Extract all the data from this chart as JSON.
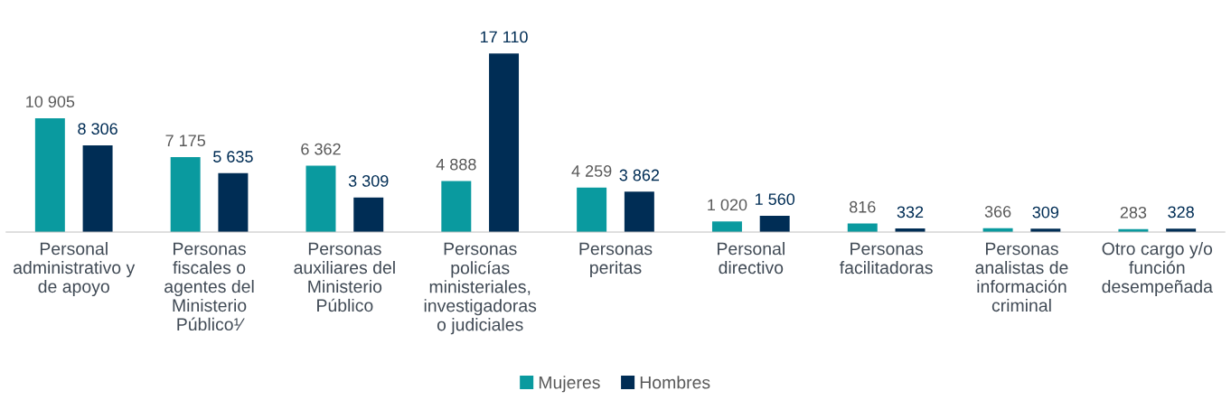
{
  "chart_data": {
    "type": "bar",
    "categories": [
      "Personal\nadministrativo y\nde apoyo",
      "Personas\nfiscales o\nagentes del\nMinisterio\nPúblico¹⁄",
      "Personas\nauxiliares del\nMinisterio\nPúblico",
      "Personas\npolicías\nministeriales,\ninvestigadoras\no judiciales",
      "Personas\nperitas",
      "Personal\ndirectivo",
      "Personas\nfacilitadoras",
      "Personas\nanalistas de\ninformación\ncriminal",
      "Otro cargo y/o\nfunción\ndesempeñada"
    ],
    "series": [
      {
        "name": "Mujeres",
        "color": "#0a9a9f",
        "values": [
          10905,
          7175,
          6362,
          4888,
          4259,
          1020,
          816,
          366,
          283
        ],
        "value_labels": [
          "10 905",
          "7 175",
          "6 362",
          "4 888",
          "4 259",
          "1 020",
          "816",
          "366",
          "283"
        ]
      },
      {
        "name": "Hombres",
        "color": "#002d55",
        "values": [
          8306,
          5635,
          3309,
          17110,
          3862,
          1560,
          332,
          309,
          328
        ],
        "value_labels": [
          "8 306",
          "5 635",
          "3 309",
          "17 110",
          "3 862",
          "1 560",
          "332",
          "309",
          "328"
        ]
      }
    ],
    "legend": "bottom"
  }
}
